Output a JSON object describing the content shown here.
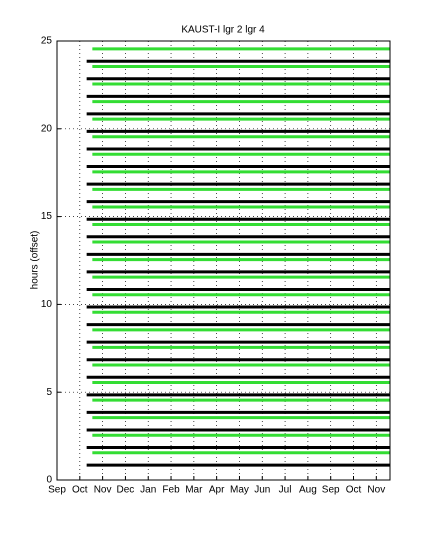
{
  "chart_data": {
    "type": "hlines",
    "title": "KAUST-I  lgr 2 lgr 4",
    "ylabel": "hours (offset)",
    "xlim": [
      0,
      14.6
    ],
    "xticks": [
      {
        "value": 0,
        "label": "Sep"
      },
      {
        "value": 1,
        "label": "Oct"
      },
      {
        "value": 2,
        "label": "Nov"
      },
      {
        "value": 3,
        "label": "Dec"
      },
      {
        "value": 4,
        "label": "Jan"
      },
      {
        "value": 5,
        "label": "Feb"
      },
      {
        "value": 6,
        "label": "Mar"
      },
      {
        "value": 7,
        "label": "Apr"
      },
      {
        "value": 8,
        "label": "May"
      },
      {
        "value": 9,
        "label": "Jun"
      },
      {
        "value": 10,
        "label": "Jul"
      },
      {
        "value": 11,
        "label": "Aug"
      },
      {
        "value": 12,
        "label": "Sep"
      },
      {
        "value": 13,
        "label": "Oct"
      },
      {
        "value": 14,
        "label": "Nov"
      }
    ],
    "ylim": [
      0,
      25
    ],
    "yticks": [
      0,
      5,
      10,
      15,
      20,
      25
    ],
    "grid": true,
    "series": [
      {
        "color": "#000000",
        "xstart": 1.3,
        "xend": 14.6,
        "values": [
          0.85,
          1.85,
          2.85,
          3.85,
          4.85,
          5.85,
          6.85,
          7.85,
          8.85,
          9.85,
          10.85,
          11.85,
          12.85,
          13.85,
          14.85,
          15.85,
          16.85,
          17.85,
          18.85,
          19.85,
          20.85,
          21.85,
          22.85,
          23.85
        ]
      },
      {
        "color": "#33dd33",
        "xstart": 1.55,
        "xend": 14.6,
        "values": [
          1.55,
          2.55,
          3.55,
          4.55,
          5.55,
          6.55,
          7.55,
          8.55,
          9.55,
          10.55,
          11.55,
          12.55,
          13.55,
          14.55,
          15.55,
          16.55,
          17.55,
          18.55,
          19.55,
          20.55,
          21.55,
          22.55,
          23.55,
          24.55
        ]
      }
    ]
  }
}
